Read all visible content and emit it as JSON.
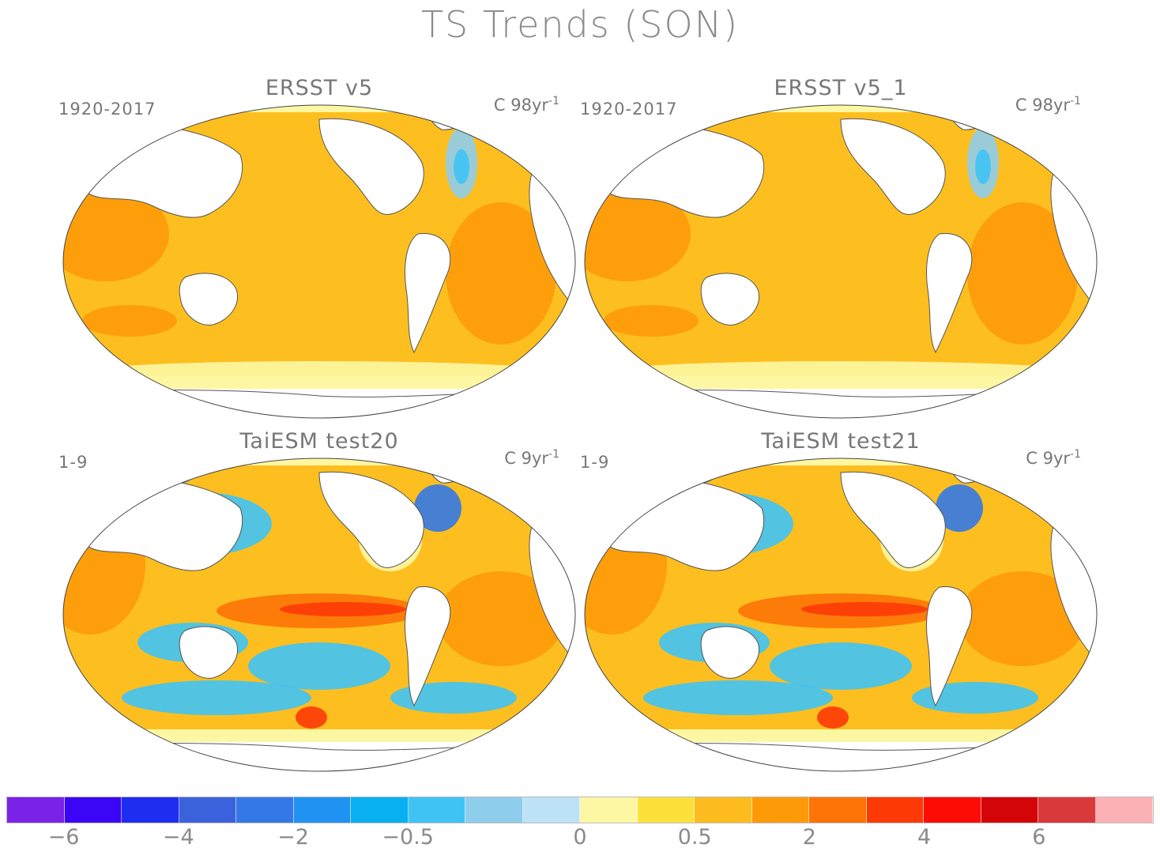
{
  "figure": {
    "title": "TS Trends (SON)"
  },
  "panels": [
    {
      "title": "ERSST v5",
      "period": "1920-2017",
      "units_prefix": "C 98yr",
      "units_exp": "-1"
    },
    {
      "title": "ERSST v5_1",
      "period": "1920-2017",
      "units_prefix": "C 98yr",
      "units_exp": "-1"
    },
    {
      "title": "TaiESM test20",
      "period": "1-9",
      "units_prefix": "C 9yr",
      "units_exp": "-1"
    },
    {
      "title": "TaiESM test21",
      "period": "1-9",
      "units_prefix": "C 9yr",
      "units_exp": "-1"
    }
  ],
  "colorbar": {
    "colors": [
      "#7b22e8",
      "#3a06f5",
      "#1e2df2",
      "#3b62dc",
      "#3378e6",
      "#1f92f2",
      "#08b0f2",
      "#3fc3f5",
      "#8fcdec",
      "#bde2f5",
      "#fdf7a3",
      "#fde03a",
      "#fdbb1e",
      "#fd9a08",
      "#fd7306",
      "#fd3a05",
      "#fd0c05",
      "#d40508",
      "#d9393a",
      "#fcb2b5"
    ],
    "tick_labels": [
      "-6",
      "-4",
      "-2",
      "-0.5",
      "0",
      "0.5",
      "2",
      "4",
      "6"
    ]
  },
  "maps": [
    {
      "style": "obs"
    },
    {
      "style": "obs"
    },
    {
      "style": "model"
    },
    {
      "style": "model"
    }
  ]
}
